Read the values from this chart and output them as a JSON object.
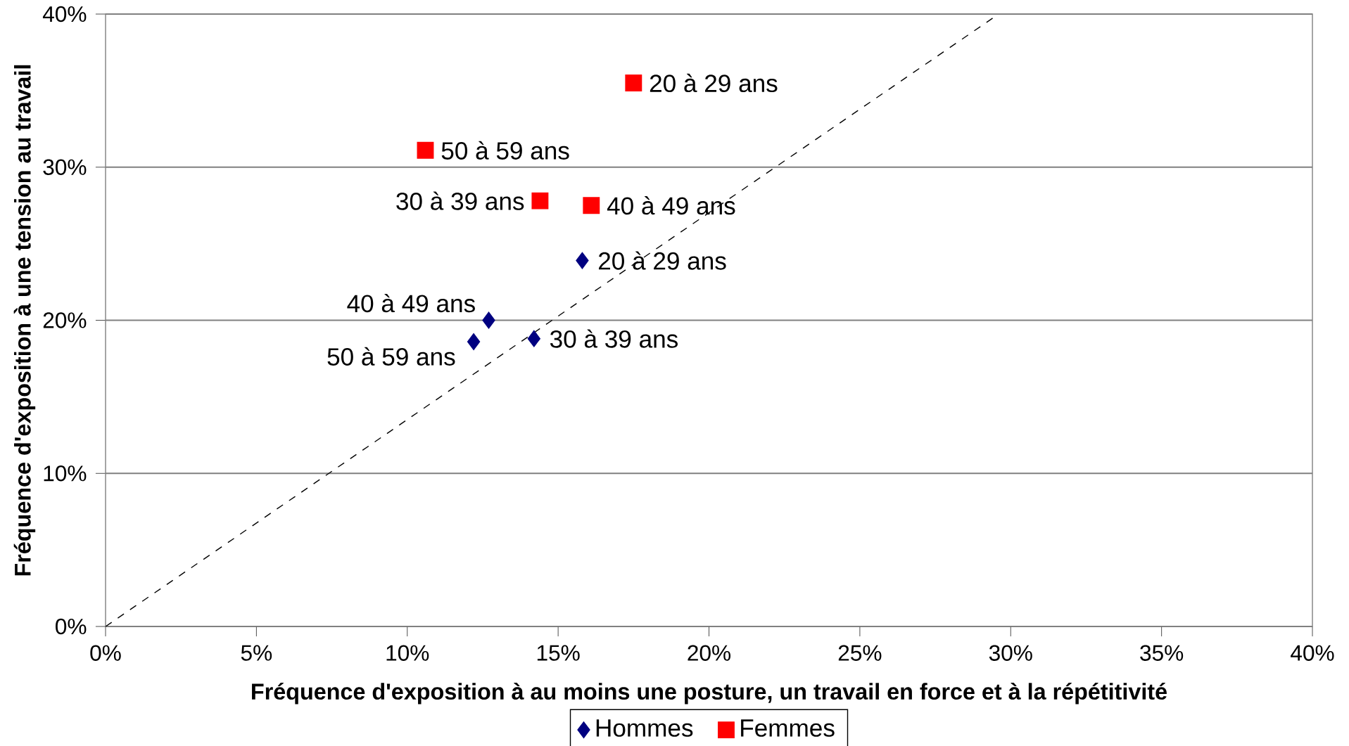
{
  "chart_data": {
    "type": "scatter",
    "xlabel": "Fréquence d'exposition à au moins une posture, un travail en force et à la répétitivité",
    "ylabel": "Fréquence d'exposition à une tension au travail",
    "xlim": [
      0,
      40
    ],
    "ylim": [
      0,
      40
    ],
    "xticks": [
      {
        "value": 0,
        "label": "0%"
      },
      {
        "value": 5,
        "label": "5%"
      },
      {
        "value": 10,
        "label": "10%"
      },
      {
        "value": 15,
        "label": "15%"
      },
      {
        "value": 20,
        "label": "20%"
      },
      {
        "value": 25,
        "label": "25%"
      },
      {
        "value": 30,
        "label": "30%"
      },
      {
        "value": 35,
        "label": "35%"
      },
      {
        "value": 40,
        "label": "40%"
      }
    ],
    "yticks": [
      {
        "value": 0,
        "label": "0%"
      },
      {
        "value": 10,
        "label": "10%"
      },
      {
        "value": 20,
        "label": "20%"
      },
      {
        "value": 30,
        "label": "30%"
      },
      {
        "value": 40,
        "label": "40%"
      }
    ],
    "grid": "y",
    "legend": "bottom",
    "series": [
      {
        "name": "Hommes",
        "color": "#000080",
        "marker": "diamond",
        "x": [
          15.8,
          14.2,
          12.7,
          12.2
        ],
        "values": [
          23.9,
          18.8,
          20.0,
          18.6
        ]
      },
      {
        "name": "Femmes",
        "color": "#ff0000",
        "marker": "square",
        "x": [
          17.5,
          14.4,
          16.1,
          10.6
        ],
        "values": [
          35.5,
          27.8,
          27.5,
          31.1
        ]
      },
      {
        "type": "line",
        "color": "#000000",
        "line_style": "dashed",
        "marker": "none",
        "x": [
          0,
          29.6
        ],
        "values": [
          0,
          40
        ]
      }
    ],
    "annotations": [
      {
        "text": "20 à 29 ans",
        "x": 15.8,
        "y": 23.9
      },
      {
        "text": "30 à 39 ans",
        "x": 14.2,
        "y": 18.8
      },
      {
        "text": "40 à 49 ans",
        "x": 12.7,
        "y": 20.0
      },
      {
        "text": "50 à 59 ans",
        "x": 12.2,
        "y": 18.6
      },
      {
        "text": "20 à 29 ans",
        "x": 17.5,
        "y": 35.5
      },
      {
        "text": "30 à 39 ans",
        "x": 14.4,
        "y": 27.8
      },
      {
        "text": "40 à 49 ans",
        "x": 16.1,
        "y": 27.5
      },
      {
        "text": "50 à 59 ans",
        "x": 10.6,
        "y": 31.1
      }
    ]
  }
}
